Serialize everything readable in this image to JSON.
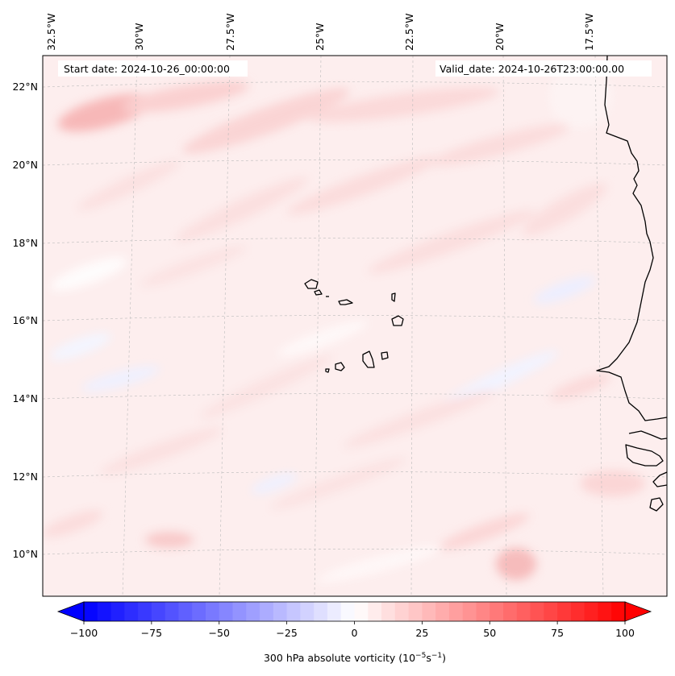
{
  "map": {
    "start_date_text": "Start date: 2024-10-26_00:00:00",
    "valid_date_text": "Valid_date: 2024-10-26T23:00:00.00",
    "lon_labels": [
      "32.5°W",
      "30°W",
      "27.5°W",
      "25°W",
      "22.5°W",
      "20°W",
      "17.5°W"
    ],
    "lat_labels": [
      "22°N",
      "20°N",
      "18°N",
      "16°N",
      "14°N",
      "12°N",
      "10°N"
    ],
    "background_color": "#fdeeee",
    "coastline_color": "#000000"
  },
  "colorbar": {
    "label_main": "300 hPa absolute vorticity (10",
    "label_exp1": "−5",
    "label_mid": "s",
    "label_exp2": "−1",
    "label_close": ")",
    "ticks": [
      "−100",
      "−75",
      "−50",
      "−25",
      "0",
      "25",
      "50",
      "75",
      "100"
    ],
    "tick_values": [
      -100,
      -75,
      -50,
      -25,
      0,
      25,
      50,
      75,
      100
    ],
    "vmin": -100,
    "vmax": 100,
    "step": 5,
    "color_negative": "#0000ff",
    "color_zero": "#ffffff",
    "color_positive": "#ff0000"
  }
}
